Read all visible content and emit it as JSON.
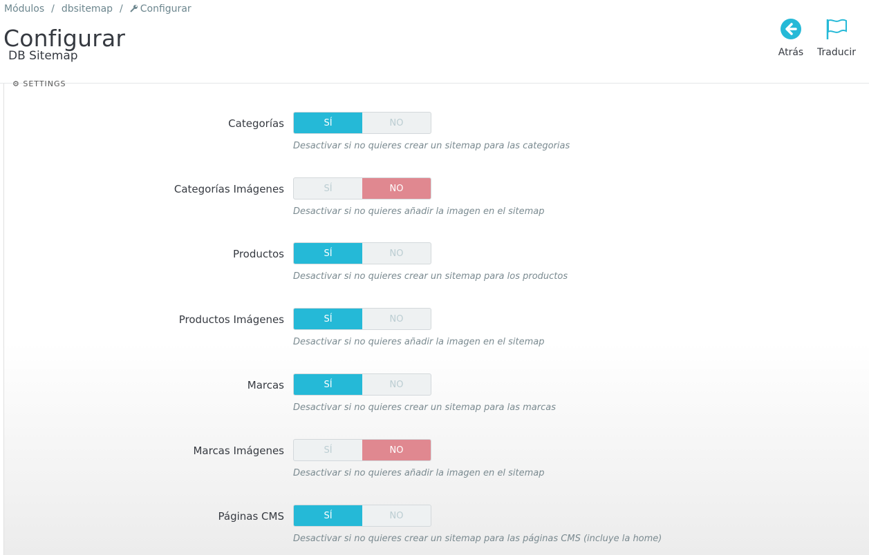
{
  "breadcrumb": {
    "items": [
      "Módulos",
      "dbsitemap",
      "Configurar"
    ],
    "separator": "/"
  },
  "page": {
    "title": "Configurar",
    "subtitle": "DB Sitemap"
  },
  "toolbar": {
    "back_label": "Atrás",
    "translate_label": "Traducir",
    "accent_color": "#25b9d7"
  },
  "panel": {
    "heading": "SETTINGS"
  },
  "colors": {
    "yes_active": "#25b9d7",
    "no_active": "#e08890"
  },
  "settings": [
    {
      "label": "Categorías",
      "yes": "SÍ",
      "no": "NO",
      "value": "yes",
      "help": "Desactivar si no quieres crear un sitemap para las categorias"
    },
    {
      "label": "Categorías Imágenes",
      "yes": "SÍ",
      "no": "NO",
      "value": "no",
      "help": "Desactivar si no quieres añadir la imagen en el sitemap"
    },
    {
      "label": "Productos",
      "yes": "SÍ",
      "no": "NO",
      "value": "yes",
      "help": "Desactivar si no quieres crear un sitemap para los productos"
    },
    {
      "label": "Productos Imágenes",
      "yes": "SÍ",
      "no": "NO",
      "value": "yes",
      "help": "Desactivar si no quieres añadir la imagen en el sitemap"
    },
    {
      "label": "Marcas",
      "yes": "SÍ",
      "no": "NO",
      "value": "yes",
      "help": "Desactivar si no quieres crear un sitemap para las marcas"
    },
    {
      "label": "Marcas Imágenes",
      "yes": "SÍ",
      "no": "NO",
      "value": "no",
      "help": "Desactivar si no quieres añadir la imagen en el sitemap"
    },
    {
      "label": "Páginas CMS",
      "yes": "SÍ",
      "no": "NO",
      "value": "yes",
      "help": "Desactivar si no quieres crear un sitemap para las páginas CMS (incluye la home)"
    }
  ]
}
